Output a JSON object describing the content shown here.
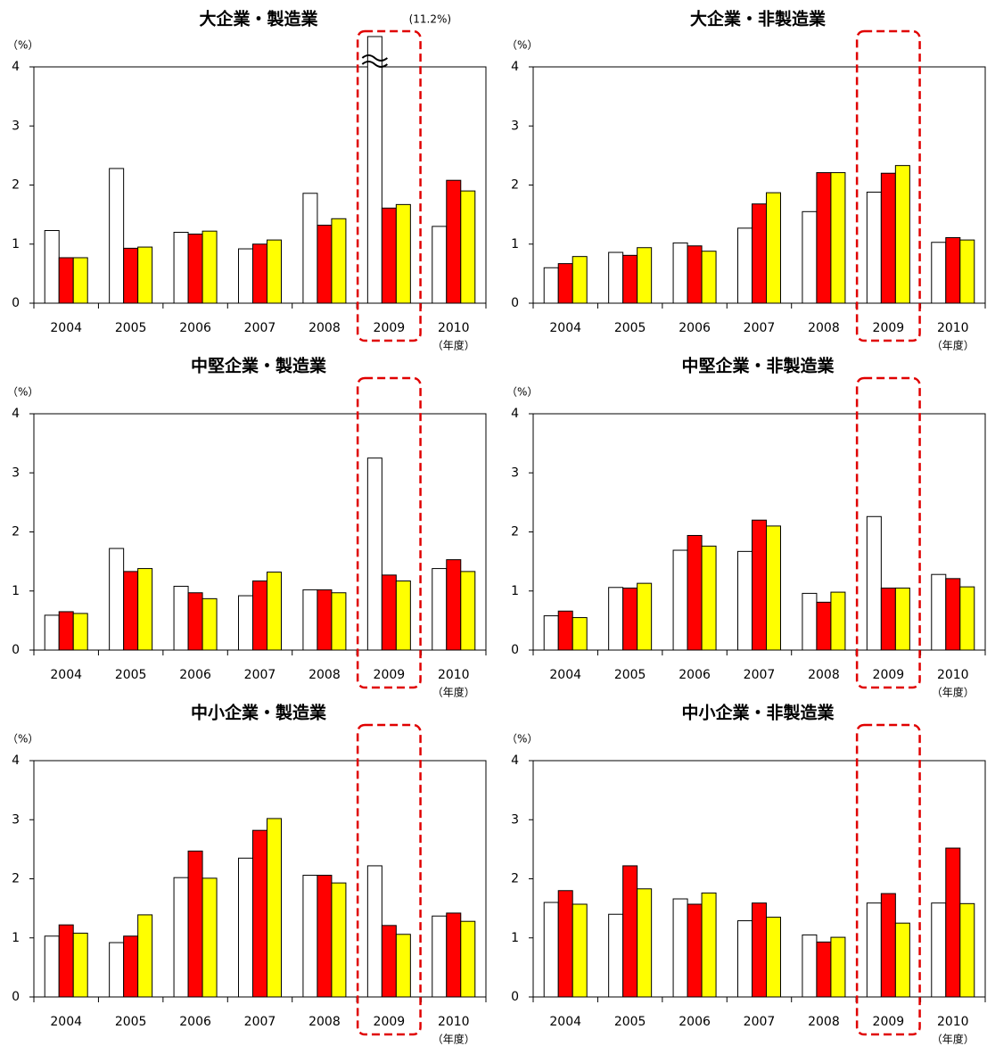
{
  "chart_data": [
    {
      "type": "bar",
      "title": "大企業・製造業",
      "y_unit": "（%）",
      "x_unit": "（年度）",
      "categories": [
        "2004",
        "2005",
        "2006",
        "2007",
        "2008",
        "2009",
        "2010"
      ],
      "series": [
        {
          "color": "#ffffff",
          "values": [
            1.23,
            2.28,
            1.2,
            0.92,
            1.86,
            11.2,
            1.3
          ],
          "value_labels": [
            null,
            null,
            null,
            null,
            null,
            "(11.2%)",
            null
          ]
        },
        {
          "color": "#ff0000",
          "values": [
            0.77,
            0.93,
            1.17,
            1.0,
            1.32,
            1.61,
            2.08
          ]
        },
        {
          "color": "#ffff00",
          "values": [
            0.77,
            0.95,
            1.22,
            1.07,
            1.43,
            1.67,
            1.9
          ]
        }
      ],
      "ylim": [
        0,
        4
      ],
      "yticks": [
        0,
        1,
        2,
        3,
        4
      ],
      "highlight": 5
    },
    {
      "type": "bar",
      "title": "大企業・非製造業",
      "y_unit": "（%）",
      "x_unit": "（年度）",
      "categories": [
        "2004",
        "2005",
        "2006",
        "2007",
        "2008",
        "2009",
        "2010"
      ],
      "series": [
        {
          "color": "#ffffff",
          "values": [
            0.6,
            0.86,
            1.02,
            1.27,
            1.55,
            1.88,
            1.03
          ]
        },
        {
          "color": "#ff0000",
          "values": [
            0.67,
            0.81,
            0.97,
            1.68,
            2.21,
            2.2,
            1.11
          ]
        },
        {
          "color": "#ffff00",
          "values": [
            0.79,
            0.94,
            0.88,
            1.87,
            2.21,
            2.33,
            1.07
          ]
        }
      ],
      "ylim": [
        0,
        4
      ],
      "yticks": [
        0,
        1,
        2,
        3,
        4
      ],
      "highlight": 5
    },
    {
      "type": "bar",
      "title": "中堅企業・製造業",
      "y_unit": "（%）",
      "x_unit": "（年度）",
      "categories": [
        "2004",
        "2005",
        "2006",
        "2007",
        "2008",
        "2009",
        "2010"
      ],
      "series": [
        {
          "color": "#ffffff",
          "values": [
            0.59,
            1.72,
            1.08,
            0.92,
            1.02,
            3.25,
            1.38
          ]
        },
        {
          "color": "#ff0000",
          "values": [
            0.65,
            1.33,
            0.97,
            1.17,
            1.02,
            1.27,
            1.53
          ]
        },
        {
          "color": "#ffff00",
          "values": [
            0.62,
            1.38,
            0.87,
            1.32,
            0.97,
            1.17,
            1.33
          ]
        }
      ],
      "ylim": [
        0,
        4
      ],
      "yticks": [
        0,
        1,
        2,
        3,
        4
      ],
      "highlight": 5
    },
    {
      "type": "bar",
      "title": "中堅企業・非製造業",
      "y_unit": "（%）",
      "x_unit": "（年度）",
      "categories": [
        "2004",
        "2005",
        "2006",
        "2007",
        "2008",
        "2009",
        "2010"
      ],
      "series": [
        {
          "color": "#ffffff",
          "values": [
            0.58,
            1.06,
            1.69,
            1.67,
            0.96,
            2.26,
            1.28
          ]
        },
        {
          "color": "#ff0000",
          "values": [
            0.66,
            1.05,
            1.94,
            2.2,
            0.81,
            1.05,
            1.21
          ]
        },
        {
          "color": "#ffff00",
          "values": [
            0.55,
            1.13,
            1.76,
            2.1,
            0.98,
            1.05,
            1.07
          ]
        }
      ],
      "ylim": [
        0,
        4
      ],
      "yticks": [
        0,
        1,
        2,
        3,
        4
      ],
      "highlight": 5
    },
    {
      "type": "bar",
      "title": "中小企業・製造業",
      "y_unit": "（%）",
      "x_unit": "（年度）",
      "categories": [
        "2004",
        "2005",
        "2006",
        "2007",
        "2008",
        "2009",
        "2010"
      ],
      "series": [
        {
          "color": "#ffffff",
          "values": [
            1.03,
            0.92,
            2.02,
            2.35,
            2.06,
            2.22,
            1.37
          ]
        },
        {
          "color": "#ff0000",
          "values": [
            1.22,
            1.03,
            2.47,
            2.82,
            2.06,
            1.21,
            1.42
          ]
        },
        {
          "color": "#ffff00",
          "values": [
            1.08,
            1.39,
            2.01,
            3.02,
            1.93,
            1.06,
            1.28
          ]
        }
      ],
      "ylim": [
        0,
        4
      ],
      "yticks": [
        0,
        1,
        2,
        3,
        4
      ],
      "highlight": 5
    },
    {
      "type": "bar",
      "title": "中小企業・非製造業",
      "y_unit": "（%）",
      "x_unit": "（年度）",
      "categories": [
        "2004",
        "2005",
        "2006",
        "2007",
        "2008",
        "2009",
        "2010"
      ],
      "series": [
        {
          "color": "#ffffff",
          "values": [
            1.6,
            1.4,
            1.66,
            1.29,
            1.05,
            1.59,
            1.59
          ]
        },
        {
          "color": "#ff0000",
          "values": [
            1.8,
            2.22,
            1.57,
            1.59,
            0.93,
            1.75,
            2.52
          ]
        },
        {
          "color": "#ffff00",
          "values": [
            1.57,
            1.83,
            1.76,
            1.35,
            1.01,
            1.25,
            1.58
          ]
        }
      ],
      "ylim": [
        0,
        4
      ],
      "yticks": [
        0,
        1,
        2,
        3,
        4
      ],
      "highlight": 5
    }
  ]
}
